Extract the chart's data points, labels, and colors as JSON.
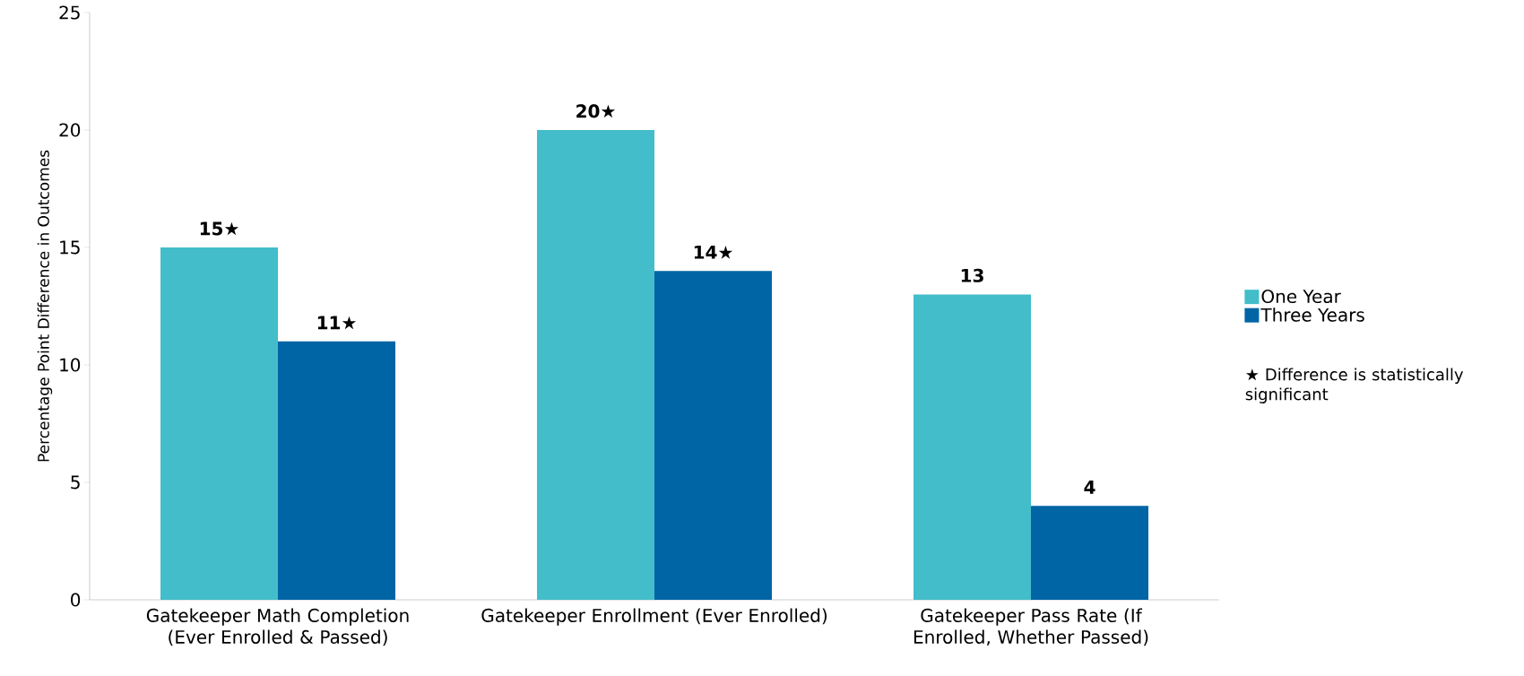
{
  "chart_data": {
    "type": "bar",
    "categories": [
      "Gatekeeper Math Completion (Ever Enrolled & Passed)",
      "Gatekeeper Enrollment (Ever Enrolled)",
      "Gatekeeper Pass Rate (If Enrolled, Whether Passed)"
    ],
    "series": [
      {
        "name": "One Year",
        "color": "#43bdca",
        "values": [
          15,
          20,
          13
        ],
        "value_labels": [
          "15★",
          "20★",
          "13"
        ]
      },
      {
        "name": "Three Years",
        "color": "#0065a5",
        "values": [
          11,
          14,
          4
        ],
        "value_labels": [
          "11★",
          "14★",
          "4"
        ]
      }
    ],
    "ylabel": "Percentage Point Difference in Outcomes",
    "ylim": [
      0,
      25
    ],
    "yticks": [
      0,
      5,
      10,
      15,
      20,
      25
    ],
    "legend": "right",
    "annotations": [
      "★ Difference is statistically significant"
    ]
  }
}
